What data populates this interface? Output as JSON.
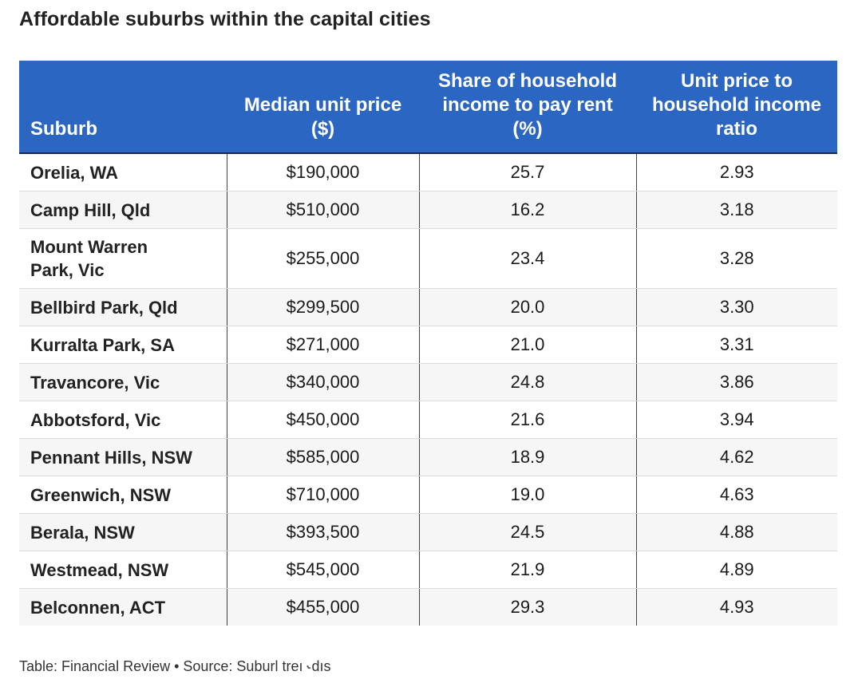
{
  "title": "Affordable suburbs within the capital cities",
  "footer": "Table: Financial Review • Source: Suburl treı ˞dıs",
  "header_color": "#2c66c3",
  "chart_data": {
    "type": "table",
    "title": "Affordable suburbs within the capital cities",
    "columns": [
      "Suburb",
      "Median unit price ($)",
      "Share of household income to pay rent (%)",
      "Unit price to household income ratio"
    ],
    "rows": [
      {
        "suburb": "Orelia, WA",
        "price": "$190,000",
        "rent_share": "25.7",
        "ratio": "2.93"
      },
      {
        "suburb": "Camp Hill, Qld",
        "price": "$510,000",
        "rent_share": "16.2",
        "ratio": "3.18"
      },
      {
        "suburb": "Mount Warren Park, Vic",
        "price": "$255,000",
        "rent_share": "23.4",
        "ratio": "3.28"
      },
      {
        "suburb": "Bellbird Park, Qld",
        "price": "$299,500",
        "rent_share": "20.0",
        "ratio": "3.30"
      },
      {
        "suburb": "Kurralta Park, SA",
        "price": "$271,000",
        "rent_share": "21.0",
        "ratio": "3.31"
      },
      {
        "suburb": "Travancore, Vic",
        "price": "$340,000",
        "rent_share": "24.8",
        "ratio": "3.86"
      },
      {
        "suburb": "Abbotsford, Vic",
        "price": "$450,000",
        "rent_share": "21.6",
        "ratio": "3.94"
      },
      {
        "suburb": "Pennant Hills, NSW",
        "price": "$585,000",
        "rent_share": "18.9",
        "ratio": "4.62"
      },
      {
        "suburb": "Greenwich, NSW",
        "price": "$710,000",
        "rent_share": "19.0",
        "ratio": "4.63"
      },
      {
        "suburb": "Berala, NSW",
        "price": "$393,500",
        "rent_share": "24.5",
        "ratio": "4.88"
      },
      {
        "suburb": "Westmead, NSW",
        "price": "$545,000",
        "rent_share": "21.9",
        "ratio": "4.89"
      },
      {
        "suburb": "Belconnen, ACT",
        "price": "$455,000",
        "rent_share": "29.3",
        "ratio": "4.93"
      }
    ]
  }
}
